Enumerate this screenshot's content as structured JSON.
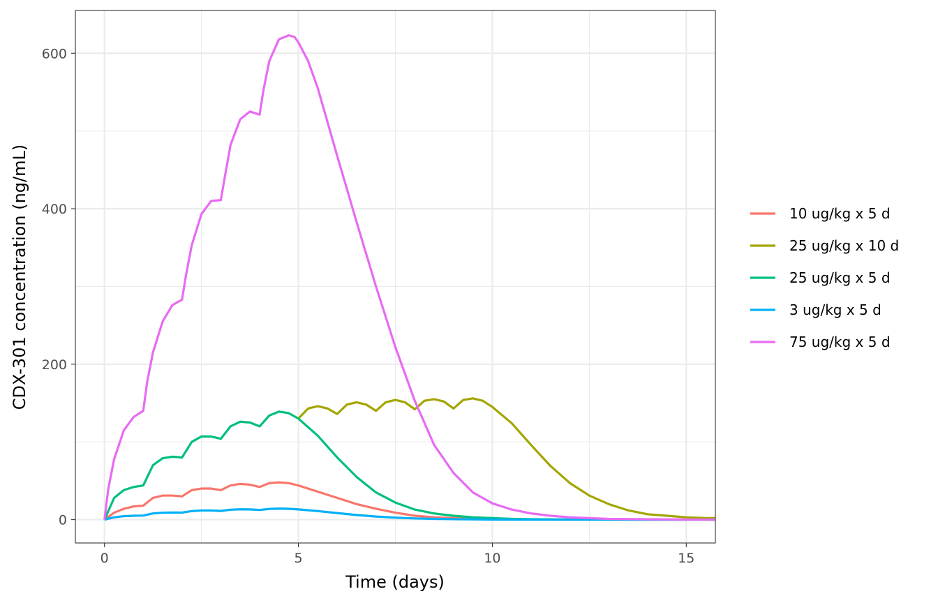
{
  "chart_data": {
    "type": "line",
    "xlabel": "Time (days)",
    "ylabel": "CDX-301 concentration (ng/mL)",
    "xlim": [
      -0.75,
      15.75
    ],
    "ylim": [
      -30,
      655
    ],
    "x_ticks": [
      0,
      5,
      10,
      15
    ],
    "x_tick_labels": [
      "0",
      "5",
      "10",
      "15"
    ],
    "y_ticks": [
      0,
      200,
      400,
      600
    ],
    "y_tick_labels": [
      "0",
      "200",
      "400",
      "600"
    ],
    "grid": true,
    "legend_position": "right",
    "series": [
      {
        "name": "10 ug/kg x 5 d",
        "color": "#F8766D",
        "x": [
          0,
          0.25,
          0.5,
          0.75,
          1.0,
          1.25,
          1.5,
          1.75,
          2.0,
          2.25,
          2.5,
          2.75,
          3.0,
          3.25,
          3.5,
          3.75,
          4.0,
          4.25,
          4.5,
          4.75,
          5.0,
          5.5,
          6.0,
          6.5,
          7.0,
          7.5,
          8.0,
          8.5,
          9.0,
          9.5,
          10,
          11,
          12,
          13,
          14,
          15,
          15.75
        ],
        "y": [
          0,
          9,
          14,
          17,
          18,
          28,
          31,
          31,
          30,
          38,
          40,
          40,
          38,
          44,
          46,
          45,
          42,
          47,
          48,
          47,
          44,
          36,
          28,
          20,
          14,
          9,
          5,
          3,
          2,
          1,
          0.5,
          0.2,
          0.1,
          0,
          0,
          0,
          0
        ]
      },
      {
        "name": "25 ug/kg x 10 d",
        "color": "#A3A500",
        "x": [
          5.0,
          5.25,
          5.5,
          5.75,
          6.0,
          6.25,
          6.5,
          6.75,
          7.0,
          7.25,
          7.5,
          7.75,
          8.0,
          8.25,
          8.5,
          8.75,
          9.0,
          9.25,
          9.5,
          9.75,
          10.0,
          10.5,
          11.0,
          11.5,
          12.0,
          12.5,
          13.0,
          13.5,
          14.0,
          14.5,
          15.0,
          15.5,
          15.75
        ],
        "y": [
          130,
          143,
          146,
          143,
          136,
          148,
          151,
          148,
          140,
          151,
          154,
          151,
          142,
          153,
          155,
          152,
          143,
          154,
          156,
          153,
          145,
          124,
          96,
          69,
          47,
          31,
          20,
          12,
          7,
          5,
          3,
          2,
          2
        ]
      },
      {
        "name": "25 ug/kg x 5 d",
        "color": "#00BF7D",
        "x": [
          0,
          0.25,
          0.5,
          0.75,
          1.0,
          1.25,
          1.5,
          1.75,
          2.0,
          2.25,
          2.5,
          2.75,
          3.0,
          3.25,
          3.5,
          3.75,
          4.0,
          4.25,
          4.5,
          4.75,
          5.0,
          5.5,
          6.0,
          6.5,
          7.0,
          7.5,
          8.0,
          8.5,
          9.0,
          9.5,
          10,
          10.5,
          11,
          12,
          13,
          14,
          15,
          15.75
        ],
        "y": [
          0,
          28,
          38,
          42,
          44,
          70,
          79,
          81,
          80,
          100,
          107,
          107,
          104,
          120,
          126,
          125,
          120,
          134,
          139,
          137,
          130,
          108,
          80,
          55,
          35,
          22,
          13,
          8,
          5,
          3,
          2,
          1,
          0.5,
          0.2,
          0.1,
          0,
          0,
          0
        ]
      },
      {
        "name": "3 ug/kg x 5 d",
        "color": "#00B0F6",
        "x": [
          0,
          0.25,
          0.5,
          0.75,
          1.0,
          1.25,
          1.5,
          1.75,
          2.0,
          2.25,
          2.5,
          2.75,
          3.0,
          3.25,
          3.5,
          3.75,
          4.0,
          4.25,
          4.5,
          4.75,
          5.0,
          5.5,
          6.0,
          6.5,
          7.0,
          7.5,
          8.0,
          8.5,
          9.0,
          10,
          11,
          12,
          13,
          14,
          15,
          15.75
        ],
        "y": [
          0,
          3,
          4.5,
          5,
          5.3,
          8,
          9,
          9.2,
          9.1,
          11,
          11.8,
          11.8,
          11.2,
          12.8,
          13.3,
          13.2,
          12.5,
          13.8,
          14.2,
          14,
          13.2,
          11,
          8.5,
          6,
          4,
          2.6,
          1.6,
          1,
          0.6,
          0.2,
          0.1,
          0,
          0,
          0,
          0,
          0
        ]
      },
      {
        "name": "75 ug/kg x 5 d",
        "color": "#E76BF3",
        "x": [
          0,
          0.1,
          0.25,
          0.5,
          0.75,
          1.0,
          1.1,
          1.25,
          1.5,
          1.75,
          2.0,
          2.1,
          2.25,
          2.5,
          2.75,
          3.0,
          3.1,
          3.25,
          3.5,
          3.75,
          4.0,
          4.1,
          4.25,
          4.5,
          4.75,
          4.9,
          5.0,
          5.25,
          5.5,
          6.0,
          6.5,
          7.0,
          7.5,
          8.0,
          8.5,
          9.0,
          9.5,
          10,
          10.5,
          11,
          11.5,
          12,
          12.5,
          13,
          14,
          15,
          15.75
        ],
        "y": [
          0,
          40,
          78,
          115,
          132,
          140,
          177,
          215,
          255,
          276,
          283,
          314,
          353,
          393,
          410,
          411,
          440,
          482,
          515,
          525,
          521,
          553,
          590,
          618,
          623,
          621,
          614,
          590,
          555,
          468,
          383,
          300,
          222,
          153,
          96,
          60,
          35,
          21,
          13,
          8,
          5,
          3,
          2,
          1,
          0.5,
          0.2,
          0.1
        ]
      }
    ]
  }
}
